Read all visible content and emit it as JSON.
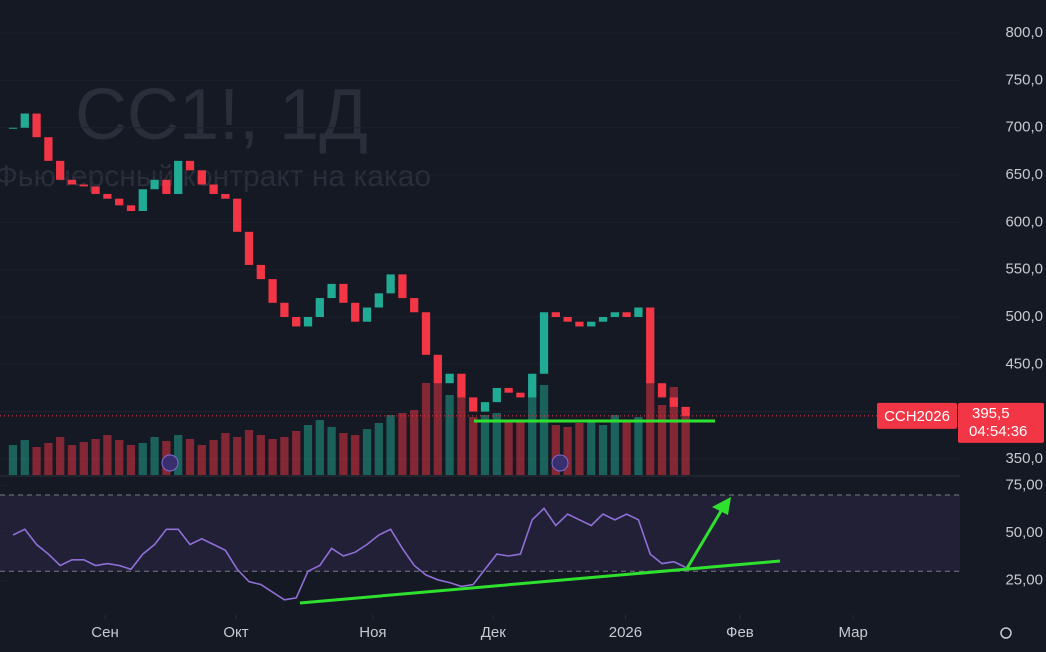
{
  "chart_data": [
    {
      "type": "candlestick",
      "title": "CC1!, 1Д",
      "subtitle": "Фьючерсный контракт на какао",
      "close": [
        700,
        715,
        690,
        665,
        645,
        640,
        638,
        630,
        625,
        618,
        612,
        635,
        645,
        630,
        665,
        655,
        640,
        630,
        625,
        590,
        555,
        540,
        515,
        500,
        490,
        500,
        520,
        535,
        515,
        495,
        510,
        525,
        545,
        520,
        505,
        460,
        430,
        440,
        415,
        400,
        410,
        425,
        420,
        415,
        440,
        505,
        500,
        495,
        490,
        495,
        500,
        505,
        500,
        510,
        430,
        415,
        405,
        395.5
      ],
      "volume": [
        30,
        35,
        28,
        32,
        38,
        30,
        33,
        36,
        40,
        35,
        30,
        32,
        38,
        34,
        40,
        36,
        30,
        35,
        42,
        38,
        45,
        40,
        36,
        38,
        44,
        50,
        55,
        48,
        42,
        40,
        46,
        52,
        60,
        62,
        65,
        92,
        95,
        80,
        78,
        58,
        60,
        62,
        55,
        54,
        85,
        90,
        50,
        48,
        52,
        55,
        50,
        60,
        55,
        58,
        95,
        70,
        88,
        62
      ],
      "up_color": "#22ab94",
      "down_color": "#f23645",
      "volume_lim": [
        0,
        100
      ],
      "ylim": [
        333,
        835
      ],
      "yticks": [
        {
          "value": 350,
          "label": "350,0"
        },
        {
          "value": 400,
          "label": "400,0"
        },
        {
          "value": 450,
          "label": "450,0"
        },
        {
          "value": 500,
          "label": "500,0"
        },
        {
          "value": 550,
          "label": "550,0"
        },
        {
          "value": 600,
          "label": "600,0"
        },
        {
          "value": 650,
          "label": "650,0"
        },
        {
          "value": 700,
          "label": "700,0"
        },
        {
          "value": 750,
          "label": "750,0"
        },
        {
          "value": 800,
          "label": "800,0"
        }
      ],
      "xlim": [
        -1.1,
        80.25
      ],
      "symbol": "CCH2026",
      "last_price": {
        "value": 395.5,
        "label": "395,5"
      },
      "countdown": "04:54:36"
    },
    {
      "type": "line",
      "values": [
        49,
        52,
        44,
        39,
        33,
        36,
        36,
        33,
        34,
        33,
        31,
        39,
        44,
        52,
        52,
        44,
        47,
        44,
        41,
        31,
        24.5,
        23,
        19,
        15,
        16,
        30,
        33,
        42,
        38,
        40,
        44,
        49,
        52,
        42,
        33,
        28,
        25.5,
        24,
        22,
        23,
        31,
        39,
        38,
        39,
        57,
        63,
        54,
        60,
        57,
        54,
        60,
        57,
        60,
        57,
        39,
        34,
        35,
        32
      ],
      "color": "#8f6fd6",
      "ylim": [
        7,
        80
      ],
      "yticks": [
        {
          "value": 25,
          "label": "25,00"
        },
        {
          "value": 50,
          "label": "50,00"
        },
        {
          "value": 75,
          "label": "75,00"
        }
      ],
      "bands": [
        30,
        70
      ],
      "xlim": [
        -1.1,
        80.25
      ],
      "xticks": [
        {
          "value": 7.8,
          "label": "Сен"
        },
        {
          "value": 18.9,
          "label": "Окт"
        },
        {
          "value": 30.5,
          "label": "Ноя"
        },
        {
          "value": 40.7,
          "label": "Дек"
        },
        {
          "value": 51.9,
          "label": "2026"
        },
        {
          "value": 61.6,
          "label": "Фев"
        },
        {
          "value": 71.2,
          "label": "Мар"
        }
      ]
    }
  ]
}
